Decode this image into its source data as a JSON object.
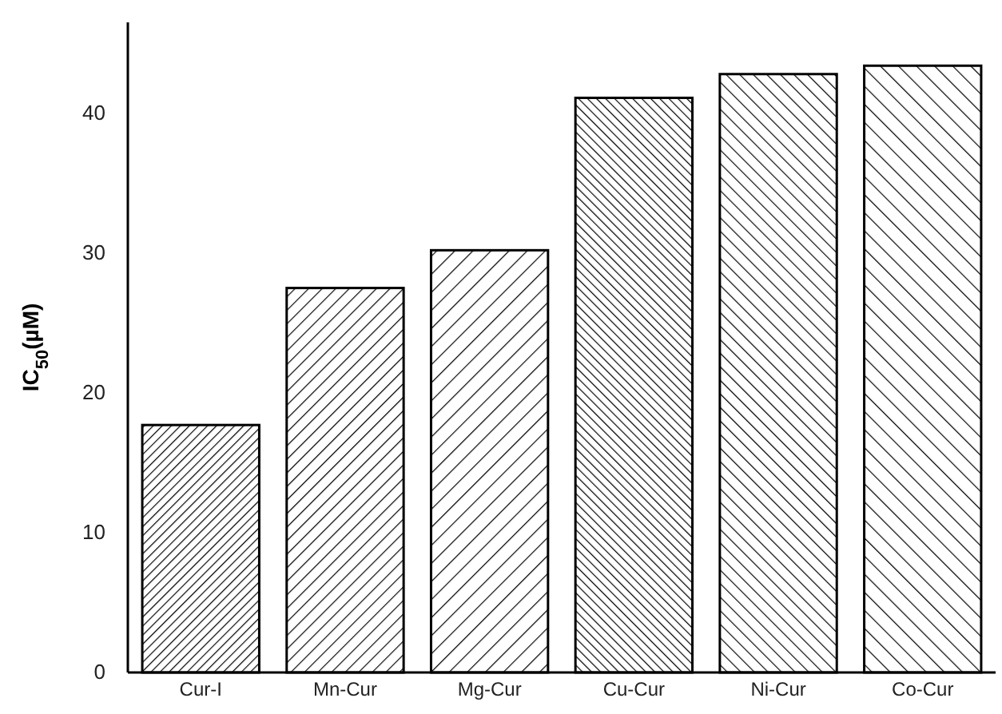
{
  "chart_data": {
    "type": "bar",
    "ylabel": "IC$_{50}$(µM)",
    "categories": [
      "Cur-I",
      "Mn-Cur",
      "Mg-Cur",
      "Cu-Cur",
      "Ni-Cur",
      "Co-Cur"
    ],
    "values": [
      17.7,
      27.5,
      30.2,
      41.1,
      42.8,
      43.4
    ],
    "color": "#000000",
    "ylim": [
      0,
      46.5
    ],
    "yticks": [
      0,
      10,
      20,
      30,
      40
    ],
    "grid": false
  }
}
